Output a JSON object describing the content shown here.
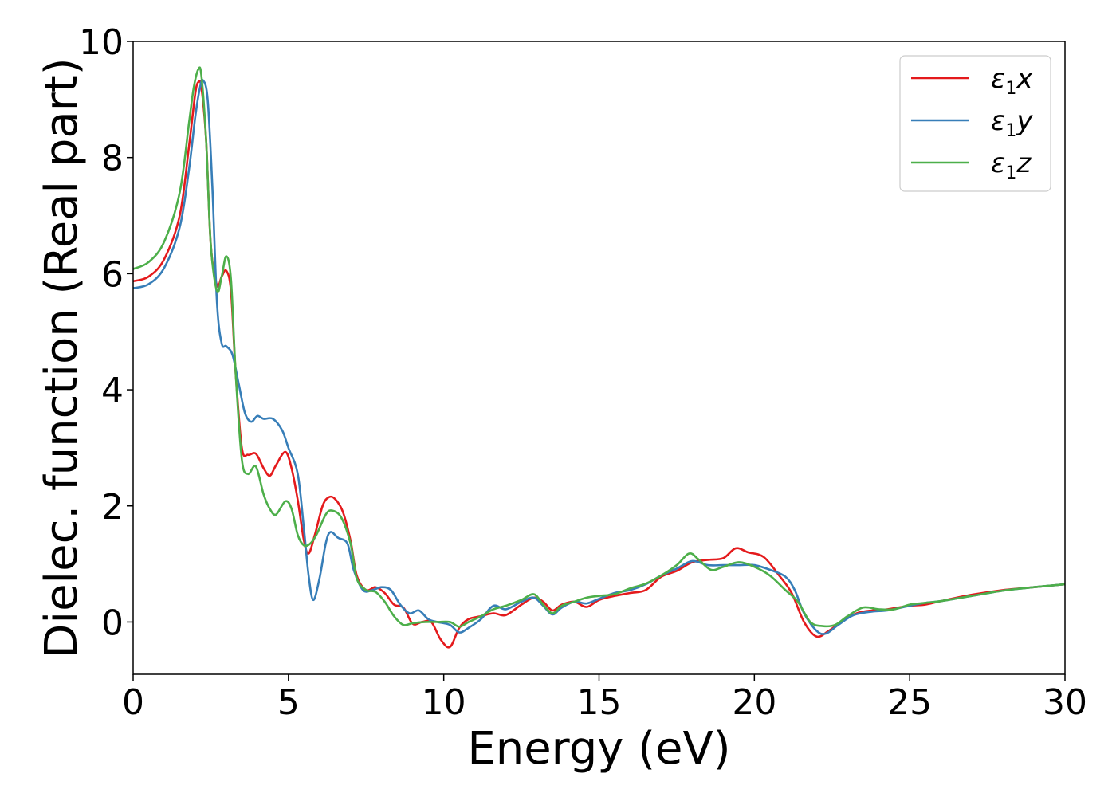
{
  "chart_data": {
    "type": "line",
    "title": "",
    "xlabel": "Energy (eV)",
    "ylabel": "Dielec. function (Real part)",
    "xlim": [
      0,
      30
    ],
    "ylim": [
      -0.9,
      10
    ],
    "xticks": [
      "0",
      "5",
      "10",
      "15",
      "20",
      "25",
      "30"
    ],
    "yticks": [
      "0",
      "2",
      "4",
      "6",
      "8",
      "10"
    ],
    "xtick_values": [
      0,
      5,
      10,
      15,
      20,
      25,
      30
    ],
    "ytick_values": [
      0,
      2,
      4,
      6,
      8,
      10
    ],
    "grid": false,
    "legend_position": "top-right",
    "series": [
      {
        "name": "ε1x",
        "name_base": "ε",
        "name_sub": "1",
        "name_suffix": "x",
        "color": "#e41a1c",
        "points": [
          [
            0,
            5.87
          ],
          [
            0.5,
            5.95
          ],
          [
            1,
            6.25
          ],
          [
            1.5,
            7.0
          ],
          [
            1.8,
            8.2
          ],
          [
            2.0,
            9.1
          ],
          [
            2.1,
            9.3
          ],
          [
            2.2,
            9.2
          ],
          [
            2.35,
            8.3
          ],
          [
            2.5,
            6.5
          ],
          [
            2.7,
            5.8
          ],
          [
            2.85,
            5.95
          ],
          [
            3.0,
            6.05
          ],
          [
            3.15,
            5.7
          ],
          [
            3.3,
            4.3
          ],
          [
            3.5,
            3.0
          ],
          [
            3.7,
            2.88
          ],
          [
            3.95,
            2.9
          ],
          [
            4.2,
            2.65
          ],
          [
            4.4,
            2.52
          ],
          [
            4.6,
            2.7
          ],
          [
            4.9,
            2.93
          ],
          [
            5.1,
            2.65
          ],
          [
            5.3,
            2.1
          ],
          [
            5.5,
            1.4
          ],
          [
            5.65,
            1.18
          ],
          [
            5.85,
            1.5
          ],
          [
            6.1,
            2.0
          ],
          [
            6.3,
            2.15
          ],
          [
            6.5,
            2.12
          ],
          [
            6.75,
            1.9
          ],
          [
            7.0,
            1.4
          ],
          [
            7.2,
            0.8
          ],
          [
            7.5,
            0.55
          ],
          [
            7.8,
            0.6
          ],
          [
            8.1,
            0.5
          ],
          [
            8.4,
            0.3
          ],
          [
            8.7,
            0.25
          ],
          [
            9.0,
            -0.03
          ],
          [
            9.3,
            0.0
          ],
          [
            9.6,
            0.0
          ],
          [
            9.9,
            -0.3
          ],
          [
            10.2,
            -0.43
          ],
          [
            10.5,
            -0.1
          ],
          [
            10.8,
            0.05
          ],
          [
            11.2,
            0.1
          ],
          [
            11.6,
            0.15
          ],
          [
            12.0,
            0.12
          ],
          [
            12.5,
            0.3
          ],
          [
            12.9,
            0.42
          ],
          [
            13.2,
            0.35
          ],
          [
            13.5,
            0.2
          ],
          [
            13.8,
            0.3
          ],
          [
            14.2,
            0.35
          ],
          [
            14.6,
            0.26
          ],
          [
            15.0,
            0.38
          ],
          [
            15.5,
            0.45
          ],
          [
            16.0,
            0.5
          ],
          [
            16.5,
            0.55
          ],
          [
            17.0,
            0.78
          ],
          [
            17.5,
            0.88
          ],
          [
            18.0,
            1.03
          ],
          [
            18.5,
            1.07
          ],
          [
            19.0,
            1.1
          ],
          [
            19.4,
            1.27
          ],
          [
            19.8,
            1.2
          ],
          [
            20.3,
            1.12
          ],
          [
            20.8,
            0.8
          ],
          [
            21.2,
            0.5
          ],
          [
            21.6,
            0.0
          ],
          [
            22.0,
            -0.25
          ],
          [
            22.4,
            -0.15
          ],
          [
            22.8,
            0.0
          ],
          [
            23.3,
            0.15
          ],
          [
            23.8,
            0.2
          ],
          [
            24.3,
            0.22
          ],
          [
            25.0,
            0.28
          ],
          [
            25.5,
            0.3
          ],
          [
            26.0,
            0.36
          ],
          [
            27.0,
            0.47
          ],
          [
            28.0,
            0.55
          ],
          [
            29.0,
            0.6
          ],
          [
            30.0,
            0.65
          ]
        ]
      },
      {
        "name": "ε1y",
        "name_base": "ε",
        "name_sub": "1",
        "name_suffix": "y",
        "color": "#377eb8",
        "points": [
          [
            0,
            5.75
          ],
          [
            0.5,
            5.82
          ],
          [
            1,
            6.1
          ],
          [
            1.5,
            6.8
          ],
          [
            1.8,
            7.8
          ],
          [
            2.0,
            8.7
          ],
          [
            2.15,
            9.2
          ],
          [
            2.25,
            9.33
          ],
          [
            2.4,
            9.0
          ],
          [
            2.55,
            7.5
          ],
          [
            2.7,
            5.5
          ],
          [
            2.85,
            4.8
          ],
          [
            3.0,
            4.75
          ],
          [
            3.2,
            4.6
          ],
          [
            3.4,
            4.1
          ],
          [
            3.6,
            3.6
          ],
          [
            3.8,
            3.45
          ],
          [
            4.0,
            3.55
          ],
          [
            4.2,
            3.5
          ],
          [
            4.5,
            3.5
          ],
          [
            4.8,
            3.3
          ],
          [
            5.0,
            3.0
          ],
          [
            5.3,
            2.55
          ],
          [
            5.5,
            1.6
          ],
          [
            5.65,
            0.8
          ],
          [
            5.8,
            0.38
          ],
          [
            6.0,
            0.75
          ],
          [
            6.2,
            1.35
          ],
          [
            6.35,
            1.55
          ],
          [
            6.6,
            1.45
          ],
          [
            6.9,
            1.35
          ],
          [
            7.1,
            0.9
          ],
          [
            7.4,
            0.55
          ],
          [
            7.7,
            0.55
          ],
          [
            8.0,
            0.6
          ],
          [
            8.3,
            0.55
          ],
          [
            8.6,
            0.3
          ],
          [
            8.9,
            0.15
          ],
          [
            9.2,
            0.2
          ],
          [
            9.5,
            0.05
          ],
          [
            9.8,
            0.0
          ],
          [
            10.2,
            -0.05
          ],
          [
            10.5,
            -0.18
          ],
          [
            10.8,
            -0.1
          ],
          [
            11.2,
            0.05
          ],
          [
            11.6,
            0.28
          ],
          [
            12.0,
            0.22
          ],
          [
            12.5,
            0.35
          ],
          [
            12.9,
            0.42
          ],
          [
            13.2,
            0.28
          ],
          [
            13.5,
            0.13
          ],
          [
            13.8,
            0.25
          ],
          [
            14.2,
            0.35
          ],
          [
            14.6,
            0.32
          ],
          [
            15.0,
            0.4
          ],
          [
            15.5,
            0.5
          ],
          [
            16.0,
            0.55
          ],
          [
            16.5,
            0.65
          ],
          [
            17.0,
            0.8
          ],
          [
            17.5,
            0.92
          ],
          [
            18.0,
            1.05
          ],
          [
            18.5,
            0.98
          ],
          [
            19.0,
            0.98
          ],
          [
            19.5,
            0.98
          ],
          [
            20.0,
            0.98
          ],
          [
            20.5,
            0.9
          ],
          [
            21.0,
            0.78
          ],
          [
            21.3,
            0.55
          ],
          [
            21.6,
            0.15
          ],
          [
            22.0,
            -0.15
          ],
          [
            22.3,
            -0.2
          ],
          [
            22.7,
            -0.05
          ],
          [
            23.2,
            0.12
          ],
          [
            23.8,
            0.18
          ],
          [
            24.3,
            0.2
          ],
          [
            25.0,
            0.28
          ],
          [
            25.5,
            0.33
          ],
          [
            26.0,
            0.36
          ],
          [
            27.0,
            0.45
          ],
          [
            28.0,
            0.54
          ],
          [
            29.0,
            0.6
          ],
          [
            30.0,
            0.65
          ]
        ]
      },
      {
        "name": "ε1z",
        "name_base": "ε",
        "name_sub": "1",
        "name_suffix": "z",
        "color": "#4daf4a",
        "points": [
          [
            0,
            6.08
          ],
          [
            0.5,
            6.2
          ],
          [
            1,
            6.55
          ],
          [
            1.5,
            7.4
          ],
          [
            1.8,
            8.6
          ],
          [
            1.95,
            9.2
          ],
          [
            2.1,
            9.52
          ],
          [
            2.2,
            9.4
          ],
          [
            2.35,
            8.3
          ],
          [
            2.5,
            6.5
          ],
          [
            2.7,
            5.7
          ],
          [
            2.85,
            5.95
          ],
          [
            3.0,
            6.3
          ],
          [
            3.15,
            5.9
          ],
          [
            3.3,
            4.3
          ],
          [
            3.5,
            2.8
          ],
          [
            3.7,
            2.55
          ],
          [
            3.95,
            2.68
          ],
          [
            4.2,
            2.2
          ],
          [
            4.4,
            1.95
          ],
          [
            4.6,
            1.85
          ],
          [
            4.9,
            2.08
          ],
          [
            5.1,
            1.95
          ],
          [
            5.3,
            1.5
          ],
          [
            5.5,
            1.32
          ],
          [
            5.7,
            1.35
          ],
          [
            5.9,
            1.5
          ],
          [
            6.2,
            1.85
          ],
          [
            6.4,
            1.92
          ],
          [
            6.7,
            1.8
          ],
          [
            7.0,
            1.35
          ],
          [
            7.2,
            0.75
          ],
          [
            7.5,
            0.55
          ],
          [
            7.8,
            0.52
          ],
          [
            8.1,
            0.35
          ],
          [
            8.4,
            0.1
          ],
          [
            8.7,
            -0.05
          ],
          [
            9.0,
            -0.02
          ],
          [
            9.4,
            0.0
          ],
          [
            9.8,
            0.0
          ],
          [
            10.2,
            0.0
          ],
          [
            10.5,
            -0.08
          ],
          [
            10.8,
            0.0
          ],
          [
            11.2,
            0.1
          ],
          [
            11.6,
            0.22
          ],
          [
            12.0,
            0.28
          ],
          [
            12.5,
            0.38
          ],
          [
            12.9,
            0.48
          ],
          [
            13.2,
            0.3
          ],
          [
            13.5,
            0.15
          ],
          [
            13.8,
            0.28
          ],
          [
            14.2,
            0.35
          ],
          [
            14.6,
            0.42
          ],
          [
            15.0,
            0.45
          ],
          [
            15.5,
            0.48
          ],
          [
            16.0,
            0.58
          ],
          [
            16.5,
            0.66
          ],
          [
            17.0,
            0.8
          ],
          [
            17.5,
            0.98
          ],
          [
            17.9,
            1.18
          ],
          [
            18.2,
            1.08
          ],
          [
            18.6,
            0.9
          ],
          [
            19.0,
            0.95
          ],
          [
            19.5,
            1.03
          ],
          [
            20.0,
            0.95
          ],
          [
            20.5,
            0.8
          ],
          [
            21.0,
            0.55
          ],
          [
            21.4,
            0.35
          ],
          [
            21.8,
            0.0
          ],
          [
            22.2,
            -0.07
          ],
          [
            22.6,
            -0.05
          ],
          [
            23.0,
            0.1
          ],
          [
            23.5,
            0.25
          ],
          [
            24.0,
            0.22
          ],
          [
            24.5,
            0.22
          ],
          [
            25.0,
            0.3
          ],
          [
            25.5,
            0.33
          ],
          [
            26.0,
            0.36
          ],
          [
            27.0,
            0.45
          ],
          [
            28.0,
            0.54
          ],
          [
            29.0,
            0.6
          ],
          [
            30.0,
            0.65
          ]
        ]
      }
    ]
  }
}
